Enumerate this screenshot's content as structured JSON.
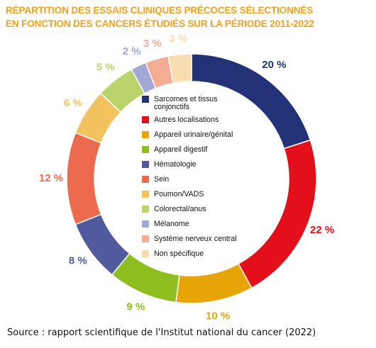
{
  "title_line1": "RÉPARTITION DES ESSAIS CLINIQUES PRÉCOCES SÉLECTIONNÉS",
  "title_line2": "EN FONCTION DES CANCERS ÉTUDIÉS SUR LA PÉRIODE 2011-2022",
  "source": "Source : rapport scientifique de l'Institut national du cancer (2022)",
  "chart_data": {
    "type": "pie",
    "donut": true,
    "legend_placement": "center",
    "slices": [
      {
        "label": [
          "Sarcomes et tissus",
          "conjonctifs"
        ],
        "value": 20,
        "value_label": "20 %",
        "color": "#233177"
      },
      {
        "label": [
          "Autres localisations"
        ],
        "value": 22,
        "value_label": "22 %",
        "color": "#e3101b"
      },
      {
        "label": [
          "Appareil urinaire/génital"
        ],
        "value": 10,
        "value_label": "10 %",
        "color": "#e8a50a"
      },
      {
        "label": [
          "Appareil digestif"
        ],
        "value": 9,
        "value_label": "9 %",
        "color": "#8dbd1f"
      },
      {
        "label": [
          "Hématologie"
        ],
        "value": 8,
        "value_label": "8 %",
        "color": "#515a9c"
      },
      {
        "label": [
          "Sein"
        ],
        "value": 12,
        "value_label": "12 %",
        "color": "#ec6a4d"
      },
      {
        "label": [
          "Poumon/VADS"
        ],
        "value": 6,
        "value_label": "6 %",
        "color": "#f2c25f"
      },
      {
        "label": [
          "Colorectal/anus"
        ],
        "value": 5,
        "value_label": "5 %",
        "color": "#b8d46a"
      },
      {
        "label": [
          "Mélanome"
        ],
        "value": 2,
        "value_label": "2 %",
        "color": "#a3a7d6"
      },
      {
        "label": [
          "Système nerveux central"
        ],
        "value": 3,
        "value_label": "3 %",
        "color": "#f4ac94"
      },
      {
        "label": [
          "Non spécifique"
        ],
        "value": 3,
        "value_label": "3 %",
        "color": "#f8ddb0"
      }
    ]
  }
}
